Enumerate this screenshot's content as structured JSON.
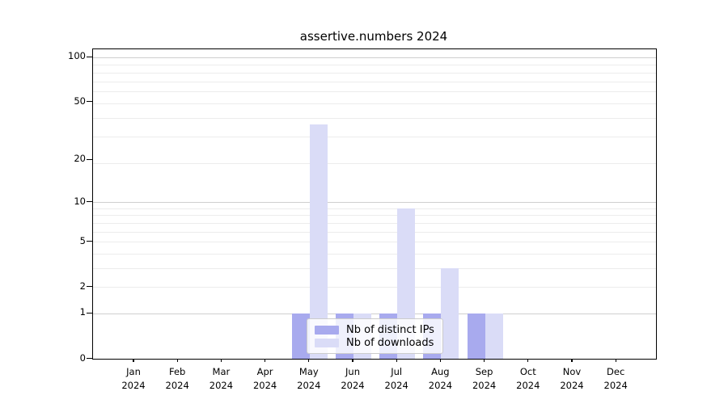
{
  "chart_data": {
    "type": "bar",
    "title": "assertive.numbers 2024",
    "x_months": [
      "Jan",
      "Feb",
      "Mar",
      "Apr",
      "May",
      "Jun",
      "Jul",
      "Aug",
      "Sep",
      "Oct",
      "Nov",
      "Dec"
    ],
    "x_year": "2024",
    "series": [
      {
        "name": "Nb of distinct IPs",
        "color": "#a8aaee",
        "values": [
          0,
          0,
          0,
          0,
          1,
          1,
          1,
          1,
          1,
          0,
          0,
          0
        ]
      },
      {
        "name": "Nb of downloads",
        "color": "#dadcf7",
        "values": [
          0,
          0,
          0,
          0,
          35,
          1,
          9,
          3,
          1,
          0,
          0,
          0
        ]
      }
    ],
    "yscale": "log1p",
    "ylim": [
      0,
      100
    ],
    "yticks": [
      0,
      1,
      2,
      5,
      10,
      20,
      50,
      100
    ],
    "major_grid_ticks": [
      1,
      10,
      100
    ],
    "grid": true,
    "legend_position": "inside-bottom-center",
    "axis_color": "#000000",
    "major_grid_color": "#cfcfcf",
    "minor_grid_color": "#ececec"
  }
}
